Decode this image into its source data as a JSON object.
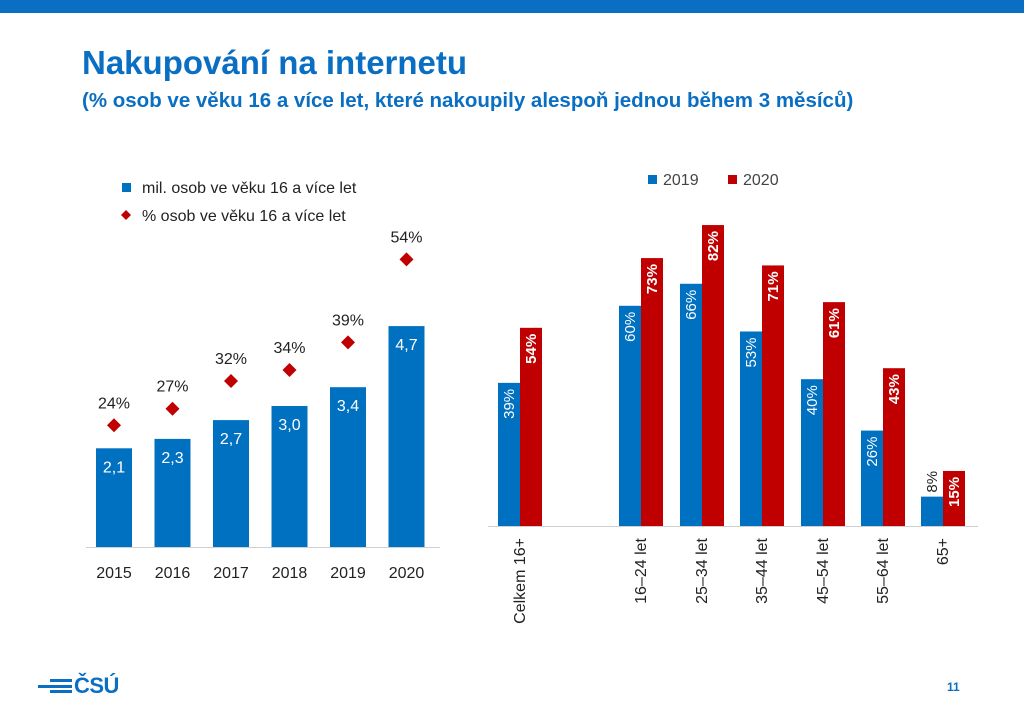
{
  "header": {
    "title": "Nakupování na internetu",
    "subtitle": "(% osob ve věku 16 a více let, které nakoupily alespoň jednou během 3 měsíců)"
  },
  "footer": {
    "logo_text": "ČSÚ",
    "page_number": "11"
  },
  "colors": {
    "blue": "#0070c0",
    "red": "#c00000",
    "brand": "#0a6fc2"
  },
  "chart_data": [
    {
      "type": "bar",
      "categories": [
        "2015",
        "2016",
        "2017",
        "2018",
        "2019",
        "2020"
      ],
      "series": [
        {
          "name": "mil. osob ve věku 16 a více let",
          "type": "bar",
          "values": [
            2.1,
            2.3,
            2.7,
            3.0,
            3.4,
            4.7
          ],
          "labels": [
            "2,1",
            "2,3",
            "2,7",
            "3,0",
            "3,4",
            "4,7"
          ]
        },
        {
          "name": "% osob ve věku 16 a více let",
          "type": "scatter",
          "marker": "diamond",
          "values": [
            24,
            27,
            32,
            34,
            39,
            54
          ],
          "labels": [
            "24%",
            "27%",
            "32%",
            "34%",
            "39%",
            "54%"
          ]
        }
      ],
      "legend": "top-left",
      "grid": false
    },
    {
      "type": "bar",
      "categories": [
        "Celkem 16+",
        "16–24 let",
        "25–34 let",
        "35–44 let",
        "45–54 let",
        "55–64 let",
        "65+"
      ],
      "series": [
        {
          "name": "2019",
          "values": [
            39,
            60,
            66,
            53,
            40,
            26,
            8
          ],
          "labels": [
            "39%",
            "60%",
            "66%",
            "53%",
            "40%",
            "26%",
            "8%"
          ]
        },
        {
          "name": "2020",
          "values": [
            54,
            73,
            82,
            71,
            61,
            43,
            15
          ],
          "labels": [
            "54%",
            "73%",
            "82%",
            "71%",
            "61%",
            "43%",
            "15%"
          ]
        }
      ],
      "legend": "top",
      "grid": false
    }
  ]
}
